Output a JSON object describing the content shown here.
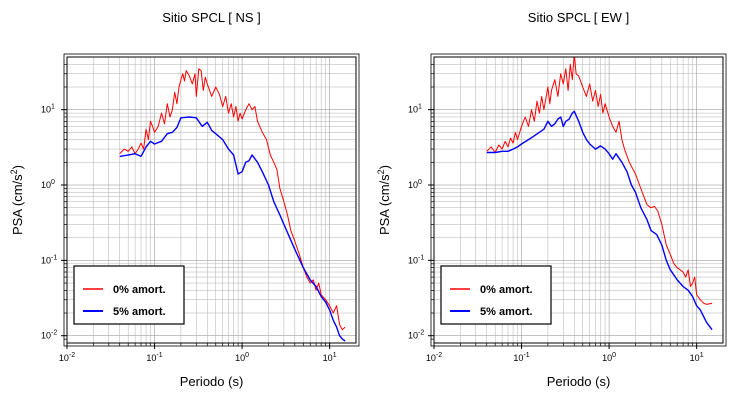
{
  "chart_data": [
    {
      "type": "line",
      "title": "Sitio SPCL [ NS ]",
      "xlabel": "Periodo (s)",
      "ylabel_main": "PSA (cm/s",
      "ylabel_sup": "2",
      "ylabel_close": ")",
      "x_scale": "log",
      "y_scale": "log",
      "xlim": [
        0.01,
        20
      ],
      "ylim": [
        0.008,
        50
      ],
      "grid": true,
      "legend_position": "bottom-left",
      "x_ticks": [
        {
          "base": "10",
          "exp": "-2",
          "value": 0.01
        },
        {
          "base": "10",
          "exp": "-1",
          "value": 0.1
        },
        {
          "base": "10",
          "exp": "0",
          "value": 1
        },
        {
          "base": "10",
          "exp": "1",
          "value": 10
        }
      ],
      "y_ticks": [
        {
          "base": "10",
          "exp": "-2",
          "value": 0.01
        },
        {
          "base": "10",
          "exp": "-1",
          "value": 0.1
        },
        {
          "base": "10",
          "exp": "0",
          "value": 1
        },
        {
          "base": "10",
          "exp": "1",
          "value": 10
        }
      ],
      "series": [
        {
          "name": "0% amort.",
          "color": "#ff0000",
          "points": [
            [
              0.04,
              2.6
            ],
            [
              0.045,
              3.0
            ],
            [
              0.05,
              2.8
            ],
            [
              0.055,
              3.2
            ],
            [
              0.06,
              2.6
            ],
            [
              0.065,
              3.0
            ],
            [
              0.07,
              3.6
            ],
            [
              0.075,
              3.0
            ],
            [
              0.08,
              5.5
            ],
            [
              0.085,
              4.0
            ],
            [
              0.09,
              7.0
            ],
            [
              0.095,
              6.0
            ],
            [
              0.1,
              5.0
            ],
            [
              0.11,
              6.0
            ],
            [
              0.12,
              9.0
            ],
            [
              0.13,
              6.5
            ],
            [
              0.14,
              12.0
            ],
            [
              0.15,
              8.0
            ],
            [
              0.16,
              10.0
            ],
            [
              0.17,
              17.0
            ],
            [
              0.18,
              12.0
            ],
            [
              0.19,
              20.0
            ],
            [
              0.2,
              25.0
            ],
            [
              0.21,
              30.0
            ],
            [
              0.22,
              24.0
            ],
            [
              0.23,
              33.0
            ],
            [
              0.25,
              28.0
            ],
            [
              0.27,
              22.0
            ],
            [
              0.29,
              30.0
            ],
            [
              0.3,
              15.0
            ],
            [
              0.32,
              35.0
            ],
            [
              0.34,
              33.0
            ],
            [
              0.36,
              18.0
            ],
            [
              0.38,
              27.0
            ],
            [
              0.4,
              22.0
            ],
            [
              0.45,
              15.0
            ],
            [
              0.5,
              20.0
            ],
            [
              0.55,
              16.0
            ],
            [
              0.6,
              11.0
            ],
            [
              0.65,
              15.0
            ],
            [
              0.7,
              9.0
            ],
            [
              0.75,
              12.0
            ],
            [
              0.8,
              8.0
            ],
            [
              0.85,
              11.0
            ],
            [
              0.9,
              7.0
            ],
            [
              0.95,
              9.0
            ],
            [
              1.0,
              7.5
            ],
            [
              1.1,
              10.0
            ],
            [
              1.2,
              12.0
            ],
            [
              1.3,
              10.0
            ],
            [
              1.4,
              11.0
            ],
            [
              1.5,
              7.0
            ],
            [
              1.7,
              5.0
            ],
            [
              1.9,
              4.0
            ],
            [
              2.1,
              2.5
            ],
            [
              2.3,
              2.0
            ],
            [
              2.5,
              1.6
            ],
            [
              2.7,
              0.9
            ],
            [
              3.0,
              0.6
            ],
            [
              3.3,
              0.4
            ],
            [
              3.6,
              0.25
            ],
            [
              4.0,
              0.18
            ],
            [
              4.5,
              0.12
            ],
            [
              5.0,
              0.08
            ],
            [
              5.5,
              0.06
            ],
            [
              6.0,
              0.05
            ],
            [
              6.5,
              0.055
            ],
            [
              7.0,
              0.04
            ],
            [
              7.5,
              0.05
            ],
            [
              8.0,
              0.035
            ],
            [
              9.0,
              0.03
            ],
            [
              10.0,
              0.025
            ],
            [
              11.0,
              0.02
            ],
            [
              12.0,
              0.025
            ],
            [
              13.0,
              0.014
            ],
            [
              14.0,
              0.012
            ],
            [
              15.0,
              0.013
            ]
          ]
        },
        {
          "name": "5% amort.",
          "color": "#0000ff",
          "points": [
            [
              0.04,
              2.4
            ],
            [
              0.05,
              2.5
            ],
            [
              0.06,
              2.6
            ],
            [
              0.07,
              2.4
            ],
            [
              0.08,
              3.2
            ],
            [
              0.09,
              3.8
            ],
            [
              0.1,
              3.5
            ],
            [
              0.12,
              3.8
            ],
            [
              0.14,
              4.8
            ],
            [
              0.16,
              5.0
            ],
            [
              0.18,
              5.8
            ],
            [
              0.2,
              7.8
            ],
            [
              0.25,
              8.0
            ],
            [
              0.3,
              7.8
            ],
            [
              0.35,
              6.0
            ],
            [
              0.4,
              6.8
            ],
            [
              0.45,
              5.3
            ],
            [
              0.5,
              4.8
            ],
            [
              0.6,
              4.0
            ],
            [
              0.7,
              3.0
            ],
            [
              0.8,
              2.5
            ],
            [
              0.9,
              1.4
            ],
            [
              1.0,
              1.5
            ],
            [
              1.1,
              2.0
            ],
            [
              1.2,
              2.1
            ],
            [
              1.3,
              2.5
            ],
            [
              1.5,
              2.0
            ],
            [
              1.7,
              1.5
            ],
            [
              2.0,
              1.0
            ],
            [
              2.3,
              0.6
            ],
            [
              2.7,
              0.4
            ],
            [
              3.0,
              0.3
            ],
            [
              3.5,
              0.2
            ],
            [
              4.0,
              0.14
            ],
            [
              5.0,
              0.08
            ],
            [
              6.0,
              0.055
            ],
            [
              7.0,
              0.045
            ],
            [
              8.0,
              0.033
            ],
            [
              9.0,
              0.028
            ],
            [
              10.0,
              0.022
            ],
            [
              11.0,
              0.016
            ],
            [
              12.0,
              0.013
            ],
            [
              13.0,
              0.01
            ],
            [
              14.0,
              0.009
            ],
            [
              15.0,
              0.0085
            ]
          ]
        }
      ]
    },
    {
      "type": "line",
      "title": "Sitio SPCL [ EW ]",
      "xlabel": "Periodo (s)",
      "ylabel_main": "PSA (cm/s",
      "ylabel_sup": "2",
      "ylabel_close": ")",
      "x_scale": "log",
      "y_scale": "log",
      "xlim": [
        0.01,
        20
      ],
      "ylim": [
        0.008,
        50
      ],
      "grid": true,
      "legend_position": "bottom-left",
      "x_ticks": [
        {
          "base": "10",
          "exp": "-2",
          "value": 0.01
        },
        {
          "base": "10",
          "exp": "-1",
          "value": 0.1
        },
        {
          "base": "10",
          "exp": "0",
          "value": 1
        },
        {
          "base": "10",
          "exp": "1",
          "value": 10
        }
      ],
      "y_ticks": [
        {
          "base": "10",
          "exp": "-2",
          "value": 0.01
        },
        {
          "base": "10",
          "exp": "-1",
          "value": 0.1
        },
        {
          "base": "10",
          "exp": "0",
          "value": 1
        },
        {
          "base": "10",
          "exp": "1",
          "value": 10
        }
      ],
      "series": [
        {
          "name": "0% amort.",
          "color": "#ff0000",
          "points": [
            [
              0.04,
              2.8
            ],
            [
              0.045,
              3.2
            ],
            [
              0.05,
              2.7
            ],
            [
              0.055,
              3.4
            ],
            [
              0.06,
              3.0
            ],
            [
              0.065,
              3.8
            ],
            [
              0.07,
              3.2
            ],
            [
              0.075,
              4.2
            ],
            [
              0.08,
              3.6
            ],
            [
              0.085,
              5.0
            ],
            [
              0.09,
              4.0
            ],
            [
              0.1,
              6.0
            ],
            [
              0.11,
              8.0
            ],
            [
              0.12,
              6.0
            ],
            [
              0.13,
              10.0
            ],
            [
              0.14,
              7.0
            ],
            [
              0.15,
              13.0
            ],
            [
              0.16,
              9.0
            ],
            [
              0.17,
              15.0
            ],
            [
              0.18,
              10.0
            ],
            [
              0.2,
              20.0
            ],
            [
              0.21,
              12.0
            ],
            [
              0.22,
              18.0
            ],
            [
              0.24,
              25.0
            ],
            [
              0.26,
              15.0
            ],
            [
              0.28,
              30.0
            ],
            [
              0.3,
              22.0
            ],
            [
              0.32,
              35.0
            ],
            [
              0.34,
              18.0
            ],
            [
              0.36,
              40.0
            ],
            [
              0.38,
              25.0
            ],
            [
              0.4,
              55.0
            ],
            [
              0.42,
              30.0
            ],
            [
              0.45,
              28.0
            ],
            [
              0.5,
              20.0
            ],
            [
              0.55,
              15.0
            ],
            [
              0.6,
              22.0
            ],
            [
              0.65,
              13.0
            ],
            [
              0.7,
              18.0
            ],
            [
              0.75,
              11.0
            ],
            [
              0.8,
              16.0
            ],
            [
              0.85,
              9.0
            ],
            [
              0.9,
              12.0
            ],
            [
              1.0,
              8.0
            ],
            [
              1.1,
              6.0
            ],
            [
              1.2,
              5.0
            ],
            [
              1.3,
              7.0
            ],
            [
              1.4,
              4.0
            ],
            [
              1.5,
              3.0
            ],
            [
              1.7,
              2.0
            ],
            [
              2.0,
              1.4
            ],
            [
              2.3,
              0.9
            ],
            [
              2.7,
              0.55
            ],
            [
              3.0,
              0.5
            ],
            [
              3.3,
              0.52
            ],
            [
              3.6,
              0.45
            ],
            [
              4.0,
              0.3
            ],
            [
              4.5,
              0.16
            ],
            [
              5.0,
              0.12
            ],
            [
              5.5,
              0.09
            ],
            [
              6.0,
              0.08
            ],
            [
              7.0,
              0.07
            ],
            [
              7.5,
              0.06
            ],
            [
              8.0,
              0.075
            ],
            [
              8.5,
              0.045
            ],
            [
              9.0,
              0.05
            ],
            [
              9.5,
              0.06
            ],
            [
              10.0,
              0.035
            ],
            [
              11.0,
              0.03
            ],
            [
              12.0,
              0.027
            ],
            [
              13.0,
              0.026
            ],
            [
              15.0,
              0.027
            ]
          ]
        },
        {
          "name": "5% amort.",
          "color": "#0000ff",
          "points": [
            [
              0.04,
              2.7
            ],
            [
              0.05,
              2.7
            ],
            [
              0.06,
              2.8
            ],
            [
              0.07,
              2.8
            ],
            [
              0.08,
              3.0
            ],
            [
              0.09,
              3.2
            ],
            [
              0.1,
              3.5
            ],
            [
              0.12,
              4.0
            ],
            [
              0.14,
              4.5
            ],
            [
              0.16,
              5.0
            ],
            [
              0.18,
              5.5
            ],
            [
              0.2,
              7.0
            ],
            [
              0.22,
              6.0
            ],
            [
              0.24,
              6.5
            ],
            [
              0.26,
              7.5
            ],
            [
              0.28,
              8.0
            ],
            [
              0.3,
              6.0
            ],
            [
              0.32,
              7.0
            ],
            [
              0.35,
              7.5
            ],
            [
              0.38,
              9.0
            ],
            [
              0.4,
              9.5
            ],
            [
              0.45,
              7.0
            ],
            [
              0.5,
              5.0
            ],
            [
              0.55,
              4.0
            ],
            [
              0.6,
              3.5
            ],
            [
              0.7,
              3.0
            ],
            [
              0.8,
              3.3
            ],
            [
              0.9,
              3.0
            ],
            [
              1.0,
              2.6
            ],
            [
              1.1,
              2.2
            ],
            [
              1.2,
              2.6
            ],
            [
              1.4,
              2.0
            ],
            [
              1.6,
              1.5
            ],
            [
              1.8,
              1.0
            ],
            [
              2.0,
              0.8
            ],
            [
              2.3,
              0.5
            ],
            [
              2.7,
              0.35
            ],
            [
              3.0,
              0.25
            ],
            [
              3.5,
              0.22
            ],
            [
              4.0,
              0.16
            ],
            [
              4.5,
              0.1
            ],
            [
              5.0,
              0.075
            ],
            [
              6.0,
              0.055
            ],
            [
              7.0,
              0.045
            ],
            [
              8.0,
              0.04
            ],
            [
              9.0,
              0.033
            ],
            [
              10.0,
              0.025
            ],
            [
              11.0,
              0.022
            ],
            [
              12.0,
              0.018
            ],
            [
              13.0,
              0.015
            ],
            [
              15.0,
              0.012
            ]
          ]
        }
      ]
    }
  ]
}
